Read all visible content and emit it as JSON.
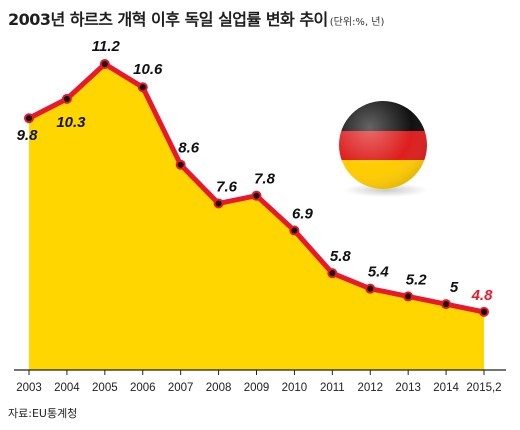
{
  "title": "2003년 하르츠 개혁 이후 독일 실업률 변화 추이",
  "unit_note": "(단위:%, 년)",
  "source": "자료:EU통계청",
  "flag": {
    "name": "germany-flag",
    "colors": [
      "#111111",
      "#dd1e1e",
      "#ffcc00"
    ]
  },
  "chart_data": {
    "type": "area",
    "categories": [
      "2003",
      "2004",
      "2005",
      "2006",
      "2007",
      "2008",
      "2009",
      "2010",
      "2011",
      "2012",
      "2013",
      "2014",
      "2015,2"
    ],
    "series": [
      {
        "values": [
          9.8,
          10.3,
          11.2,
          10.6,
          8.6,
          7.6,
          7.8,
          6.9,
          5.8,
          5.4,
          5.2,
          5.0,
          4.8
        ]
      }
    ],
    "value_labels": [
      "9.8",
      "10.3",
      "11.2",
      "10.6",
      "8.6",
      "7.6",
      "7.8",
      "6.9",
      "5.8",
      "5.4",
      "5.2",
      "5",
      "4.8"
    ],
    "ylim": [
      3.3,
      11.2
    ],
    "grid": false,
    "colors": {
      "fill": "#ffd600",
      "line": "#e8192c",
      "marker": "#111111",
      "label": "#111111",
      "highlight_label": "#e8192c"
    },
    "highlight_last": true
  }
}
